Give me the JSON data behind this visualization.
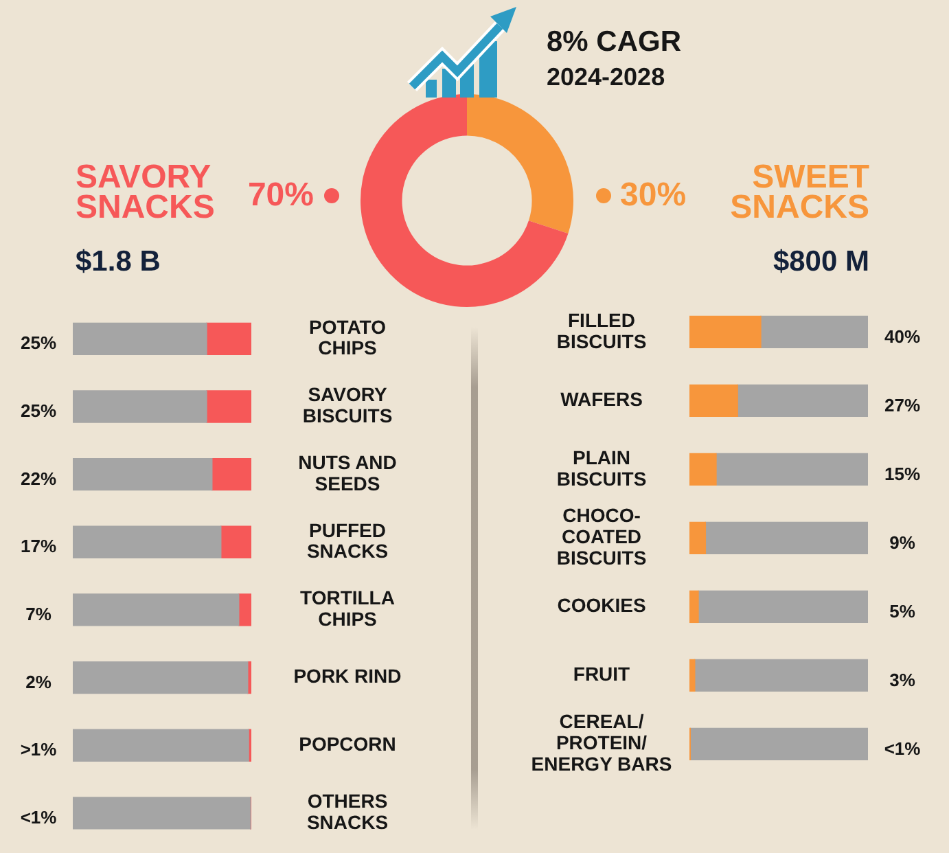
{
  "chart_data": [
    {
      "type": "donut",
      "categories": [
        null,
        null
      ],
      "values": [
        30,
        70
      ],
      "colors": [
        "#f7963c",
        "#f65858"
      ],
      "value_labels": [
        "30%",
        "70%"
      ],
      "annotations": [
        "8% CAGR",
        "2024-2028"
      ]
    },
    {
      "type": "bar",
      "title": "SAVORY\nSNACKS",
      "subtitle": "$1.8 B",
      "orientation": "horizontal",
      "stacked": true,
      "tick_labels": "y",
      "categories": [
        "POTATO\nCHIPS",
        "SAVORY\nBISCUITS",
        "NUTS AND\nSEEDS",
        "PUFFED\nSNACKS",
        "TORTILLA\nCHIPS",
        "PORK RIND",
        "POPCORN",
        "OTHERS\nSNACKS"
      ],
      "series": [
        {
          "color": "#a5a5a5",
          "values": [
            75,
            75,
            78,
            83,
            93,
            98,
            98.5,
            99.5
          ]
        },
        {
          "color": "#f65858",
          "values": [
            25,
            25,
            22,
            17,
            7,
            2,
            1.5,
            0.5
          ],
          "value_labels": [
            "25%",
            "25%",
            "22%",
            "17%",
            "7%",
            "2%",
            ">1%",
            "<1%"
          ]
        }
      ]
    },
    {
      "type": "bar",
      "title": "SWEET\nSNACKS",
      "subtitle": "$800 M",
      "orientation": "horizontal",
      "stacked": true,
      "tick_labels": "y",
      "categories": [
        "FILLED\nBISCUITS",
        "WAFERS",
        "PLAIN\nBISCUITS",
        "CHOCO-\nCOATED\nBISCUITS",
        "COOKIES",
        "FRUIT",
        "CEREAL/\nPROTEIN/\nENERGY BARS"
      ],
      "series": [
        {
          "color": "#f7963c",
          "values": [
            40,
            27,
            15,
            9,
            5,
            3,
            0.5
          ],
          "value_labels": [
            "40%",
            "27%",
            "15%",
            "9%",
            "5%",
            "3%",
            "<1%"
          ]
        },
        {
          "color": "#a5a5a5",
          "values": [
            60,
            73,
            85,
            91,
            95,
            97,
            99.5
          ]
        }
      ]
    }
  ]
}
